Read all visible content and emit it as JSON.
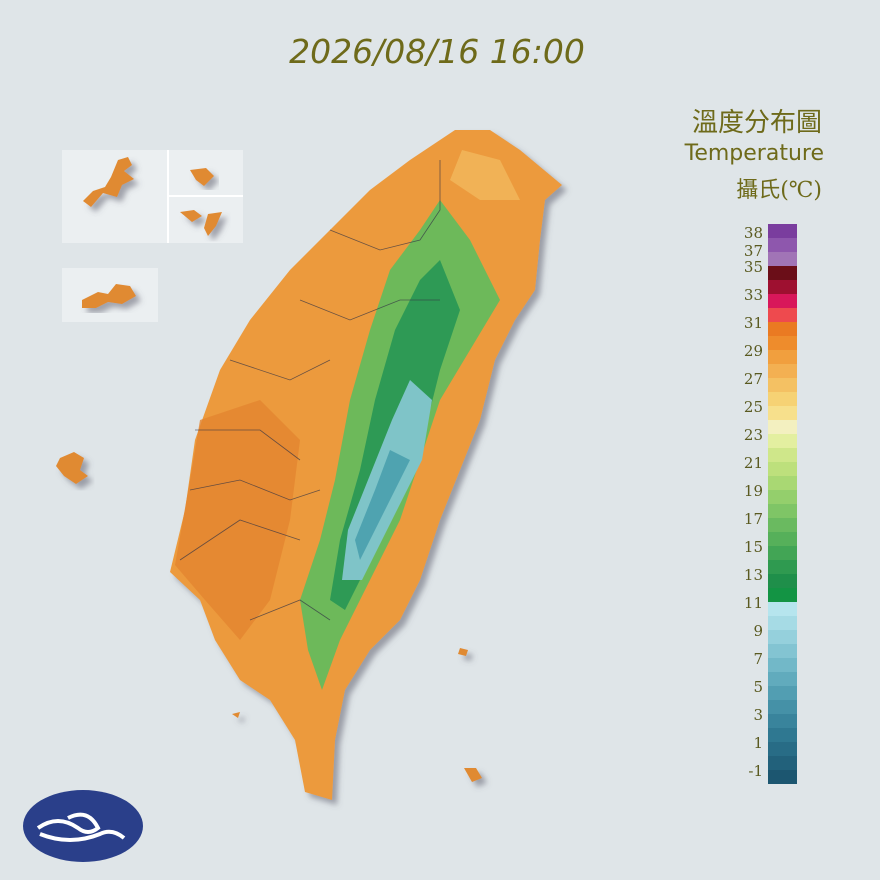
{
  "timestamp": "2026/08/16 16:00",
  "title": "溫度分布圖",
  "subtitle": "Temperature",
  "unit": "攝氏(℃)",
  "legend": {
    "labels": [
      38,
      37,
      35,
      33,
      31,
      29,
      27,
      25,
      23,
      21,
      19,
      17,
      15,
      13,
      11,
      9,
      7,
      5,
      3,
      1,
      -1
    ]
  }
}
